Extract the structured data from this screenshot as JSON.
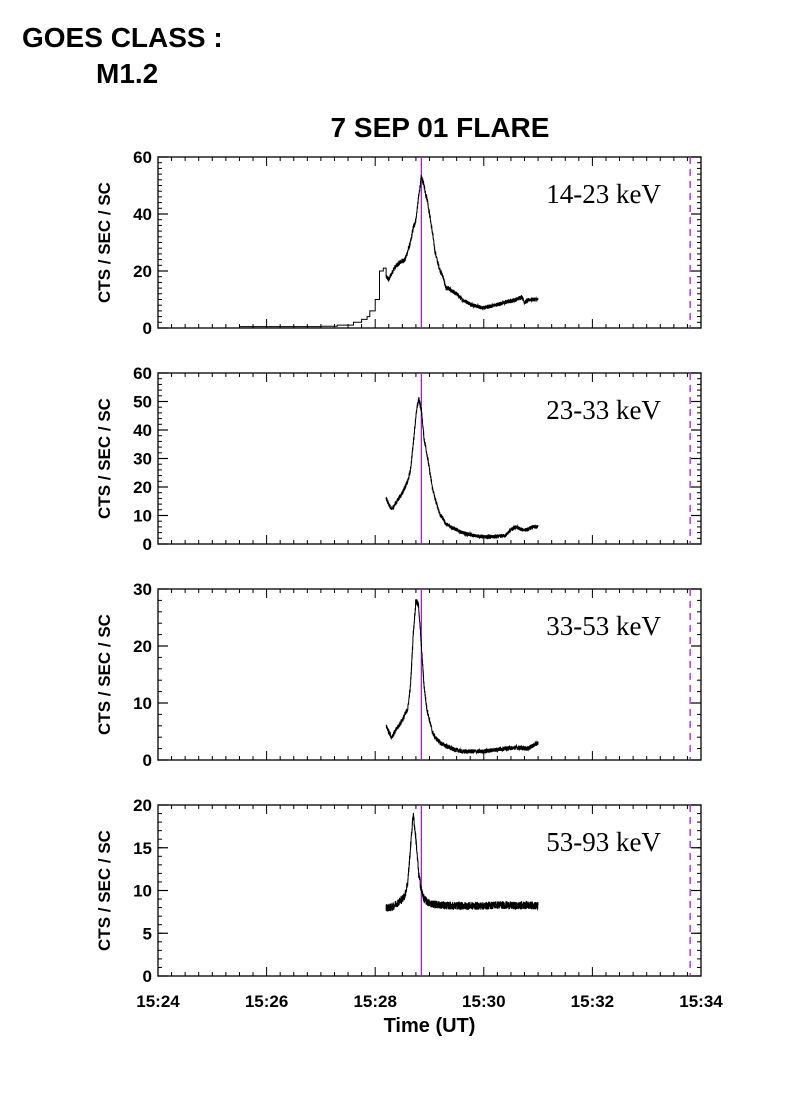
{
  "header": {
    "goes_label": "GOES CLASS :",
    "goes_value": "M1.2",
    "title": "7 SEP 01 FLARE"
  },
  "colors": {
    "marker": "#a020f0",
    "line": "#000000"
  },
  "chart_data": [
    {
      "type": "line",
      "band": "14-23 keV",
      "ylabel": "CTS / SEC / SC",
      "ylim": [
        0,
        60
      ],
      "yticks": [
        0,
        20,
        40,
        60
      ],
      "minor_step": 2,
      "x": [
        15.0,
        25.0,
        30.0,
        33.0,
        36.0,
        37.5,
        38.5,
        39.0,
        40.0,
        40.8,
        41.5,
        42.0,
        42.5,
        43.5,
        44.5,
        45.5,
        46.0,
        46.5,
        47.0,
        47.5,
        48.0,
        48.5,
        49.0,
        49.3,
        49.6,
        50.0,
        50.5,
        51.0,
        51.5,
        52.0,
        52.5,
        53.0,
        53.5,
        54.0,
        55.0,
        56.0,
        58.0,
        60.0,
        62.0,
        64.0,
        66.0,
        67.0,
        67.5,
        68.5,
        70.0
      ],
      "y": [
        0.5,
        0.5,
        0.6,
        1,
        2,
        3,
        4,
        6,
        10,
        20,
        21,
        18,
        17,
        21,
        23,
        24,
        27,
        30,
        35,
        38,
        46,
        53,
        50,
        47,
        45,
        40,
        34,
        27,
        23,
        20,
        18,
        14,
        14,
        13,
        12,
        10,
        8,
        7,
        8,
        9,
        10,
        11,
        9,
        10,
        10
      ],
      "step_until": 42.0,
      "noise": 1.0
    },
    {
      "type": "line",
      "band": "23-33 keV",
      "ylabel": "CTS / SEC / SC",
      "ylim": [
        0,
        60
      ],
      "yticks": [
        0,
        10,
        20,
        30,
        40,
        50,
        60
      ],
      "minor_step": 2,
      "x": [
        42.0,
        43.0,
        44.0,
        45.0,
        46.0,
        46.5,
        47.0,
        47.5,
        48.0,
        48.5,
        49.0,
        49.5,
        50.0,
        50.5,
        51.0,
        51.5,
        52.0,
        52.5,
        53.0,
        54.0,
        55.0,
        56.0,
        58.0,
        60.0,
        62.0,
        64.0,
        65.0,
        66.0,
        67.0,
        68.0,
        69.0,
        70.0
      ],
      "y": [
        16,
        12,
        15,
        18,
        22,
        26,
        35,
        45,
        51,
        47,
        37,
        32,
        26,
        20,
        16,
        13,
        10,
        9,
        7,
        6,
        5,
        4,
        3,
        2.5,
        2.5,
        3,
        5,
        6,
        5,
        5,
        6,
        6
      ],
      "noise": 1.0
    },
    {
      "type": "line",
      "band": "33-53 keV",
      "ylabel": "CTS / SEC / SC",
      "ylim": [
        0,
        30
      ],
      "yticks": [
        0,
        10,
        20,
        30
      ],
      "minor_step": 2,
      "x": [
        42.0,
        43.0,
        44.0,
        45.0,
        46.0,
        46.5,
        47.0,
        47.5,
        48.0,
        48.5,
        49.0,
        49.5,
        50.0,
        50.5,
        51.0,
        52.0,
        53.0,
        54.0,
        56.0,
        58.0,
        60.0,
        62.0,
        64.0,
        66.0,
        68.0,
        69.0,
        70.0
      ],
      "y": [
        6,
        4,
        5.5,
        7,
        9,
        13,
        22,
        28,
        27,
        20,
        13,
        9,
        7,
        5,
        4,
        3,
        2.5,
        2,
        1.5,
        1.5,
        1.5,
        1.8,
        2,
        2.2,
        2,
        2.5,
        3
      ],
      "noise": 0.6
    },
    {
      "type": "line",
      "band": "53-93 keV",
      "ylabel": "CTS / SEC / SC",
      "ylim": [
        0,
        20
      ],
      "yticks": [
        0,
        5,
        10,
        15,
        20
      ],
      "minor_step": 1,
      "x": [
        42.0,
        43.0,
        44.0,
        45.0,
        45.5,
        46.0,
        46.5,
        47.0,
        47.5,
        48.0,
        48.5,
        49.0,
        49.5,
        50.0,
        51.0,
        52.0,
        54.0,
        56.0,
        58.0,
        60.0,
        62.0,
        64.0,
        66.0,
        68.0,
        70.0
      ],
      "y": [
        8,
        8,
        8.5,
        9,
        9.5,
        11,
        15,
        19,
        16,
        12,
        10,
        9,
        8.7,
        8.5,
        8.4,
        8.3,
        8.2,
        8.2,
        8.2,
        8.2,
        8.3,
        8.3,
        8.2,
        8.3,
        8.2
      ],
      "noise": 0.5
    }
  ],
  "x_axis": {
    "label": "Time (UT)",
    "minutes_range": [
      24,
      34
    ],
    "ticks": [
      "15:24",
      "15:26",
      "15:28",
      "15:30",
      "15:32",
      "15:34"
    ],
    "marker_solid": "15:28.85",
    "marker_dashed": "15:33.8"
  }
}
